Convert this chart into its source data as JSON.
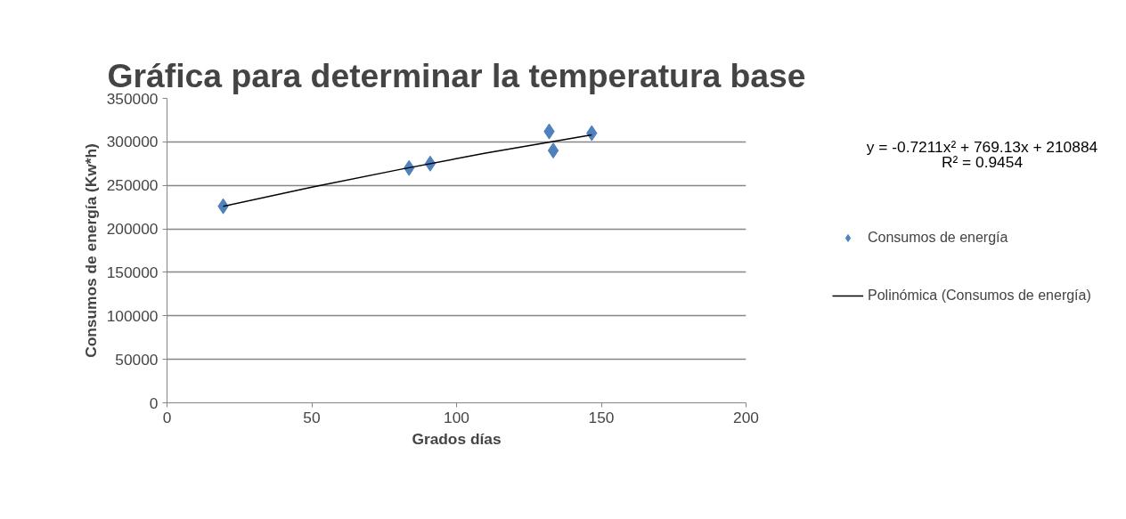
{
  "chart_data": {
    "type": "scatter",
    "title": "Gráfica para determinar la temperatura base",
    "xlabel": "Grados días",
    "ylabel": "Consumos de energía (Kw*h)",
    "annotations": [
      "y = -0.7211x² + 769.13x + 210884",
      "R² = 0.9454"
    ],
    "series": [
      {
        "name": "Consumos de energía",
        "color": "#4f81bd",
        "marker": "diamond",
        "x": [
          19.4,
          83.6,
          90.9,
          132,
          133.4,
          146.7
        ],
        "values": [
          226000,
          270000,
          275000,
          312000,
          290000,
          310000
        ]
      },
      {
        "name": "Polinómica (Consumos de energía)",
        "type": "line",
        "color": "#000000",
        "line_style": "solid",
        "x": [
          19.4,
          50,
          80,
          110,
          146.7
        ],
        "values": [
          226000,
          248000,
          268000,
          287000,
          308000
        ]
      }
    ],
    "xlim": [
      0,
      200
    ],
    "xticks": [
      0,
      50,
      100,
      150,
      200
    ],
    "ylim": [
      0,
      350000
    ],
    "yticks": [
      0,
      50000,
      100000,
      150000,
      200000,
      250000,
      300000,
      350000
    ],
    "grid": "y",
    "legend": "right"
  }
}
